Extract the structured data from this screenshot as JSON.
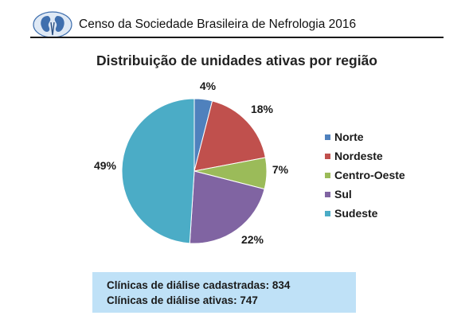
{
  "header": {
    "title": "Censo da Sociedade Brasileira de Nefrologia 2016"
  },
  "chart_data": {
    "type": "pie",
    "title": "Distribuição de unidades ativas por região",
    "slices": [
      {
        "label": "Norte",
        "value": 4,
        "value_label": "4%",
        "color": "#4f81bd"
      },
      {
        "label": "Nordeste",
        "value": 18,
        "value_label": "18%",
        "color": "#c0504d"
      },
      {
        "label": "Centro-Oeste",
        "value": 7,
        "value_label": "7%",
        "color": "#9bbb59"
      },
      {
        "label": "Sul",
        "value": 22,
        "value_label": "22%",
        "color": "#8064a2"
      },
      {
        "label": "Sudeste",
        "value": 49,
        "value_label": "49%",
        "color": "#4bacc6"
      }
    ],
    "start": "12 o'clock",
    "direction": "clockwise",
    "legend_position": "right"
  },
  "info_box": {
    "line1": "Clínicas de diálise cadastradas: 834",
    "line2": "Clínicas de diálise ativas: 747",
    "color": "#bfe1f7"
  }
}
